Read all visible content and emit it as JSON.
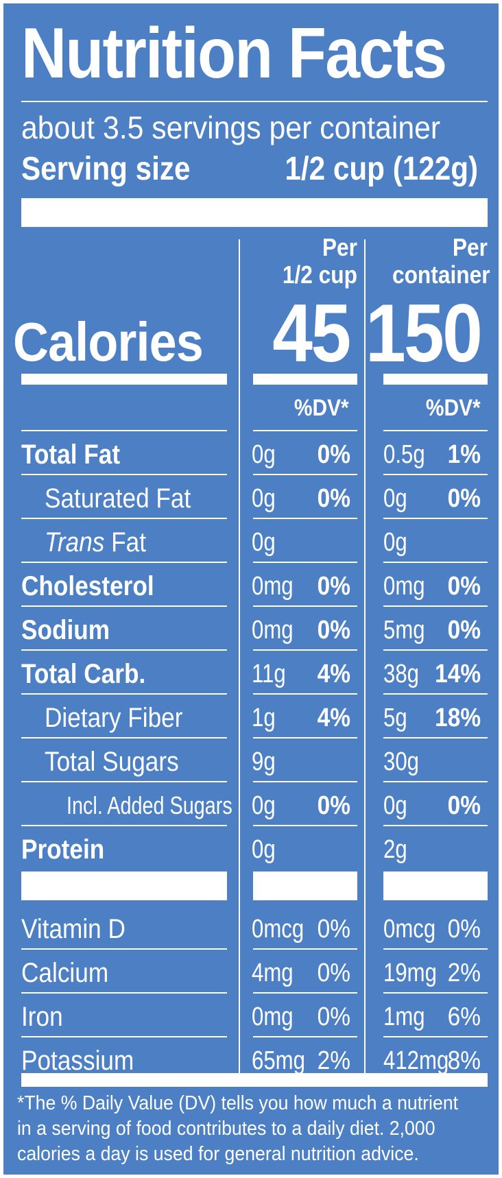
{
  "title": "Nutrition Facts",
  "servings_per_container": "about 3.5 servings per container",
  "serving_size_label": "Serving size",
  "serving_size_value": "1/2 cup (122g)",
  "columns": {
    "col1_header_line1": "Per",
    "col1_header_line2": "1/2 cup",
    "col2_header_line1": "Per",
    "col2_header_line2": "container",
    "dv_label": "%DV*"
  },
  "calories": {
    "label": "Calories",
    "per_serving": "45",
    "per_container": "150"
  },
  "nutrients": [
    {
      "name": "Total Fat",
      "style": "bold",
      "amount1": "0g",
      "dv1": "0%",
      "amount2": "0.5g",
      "dv2": "1%"
    },
    {
      "name": "Saturated Fat",
      "style": "indent",
      "amount1": "0g",
      "dv1": "0%",
      "amount2": "0g",
      "dv2": "0%"
    },
    {
      "name_italic": "Trans",
      "name": "Fat",
      "style": "indent",
      "amount1": "0g",
      "dv1": "",
      "amount2": "0g",
      "dv2": ""
    },
    {
      "name": "Cholesterol",
      "style": "bold",
      "amount1": "0mg",
      "dv1": "0%",
      "amount2": "0mg",
      "dv2": "0%"
    },
    {
      "name": "Sodium",
      "style": "bold",
      "amount1": "0mg",
      "dv1": "0%",
      "amount2": "5mg",
      "dv2": "0%"
    },
    {
      "name": "Total Carb.",
      "style": "bold",
      "amount1": "11g",
      "dv1": "4%",
      "amount2": "38g",
      "dv2": "14%"
    },
    {
      "name": "Dietary Fiber",
      "style": "indent",
      "amount1": "1g",
      "dv1": "4%",
      "amount2": "5g",
      "dv2": "18%"
    },
    {
      "name": "Total Sugars",
      "style": "indent",
      "amount1": "9g",
      "dv1": "",
      "amount2": "30g",
      "dv2": ""
    },
    {
      "name": "Incl. Added Sugars",
      "style": "indent2",
      "amount1": "0g",
      "dv1": "0%",
      "amount2": "0g",
      "dv2": "0%"
    },
    {
      "name": "Protein",
      "style": "bold",
      "amount1": "0g",
      "dv1": "",
      "amount2": "2g",
      "dv2": ""
    }
  ],
  "vitamins": [
    {
      "name": "Vitamin D",
      "amount1": "0mcg",
      "dv1": "0%",
      "amount2": "0mcg",
      "dv2": "0%"
    },
    {
      "name": "Calcium",
      "amount1": "4mg",
      "dv1": "0%",
      "amount2": "19mg",
      "dv2": "2%"
    },
    {
      "name": "Iron",
      "amount1": "0mg",
      "dv1": "0%",
      "amount2": "1mg",
      "dv2": "6%"
    },
    {
      "name": "Potassium",
      "amount1": "65mg",
      "dv1": "2%",
      "amount2": "412mg",
      "dv2": "8%"
    }
  ],
  "footnote": "*The % Daily Value (DV) tells you how much a nutrient in a serving of food contributes to a daily diet. 2,000 calories a day is used for general nutrition advice.",
  "colors": {
    "background": "#4c7fc4",
    "foreground": "#ffffff"
  }
}
